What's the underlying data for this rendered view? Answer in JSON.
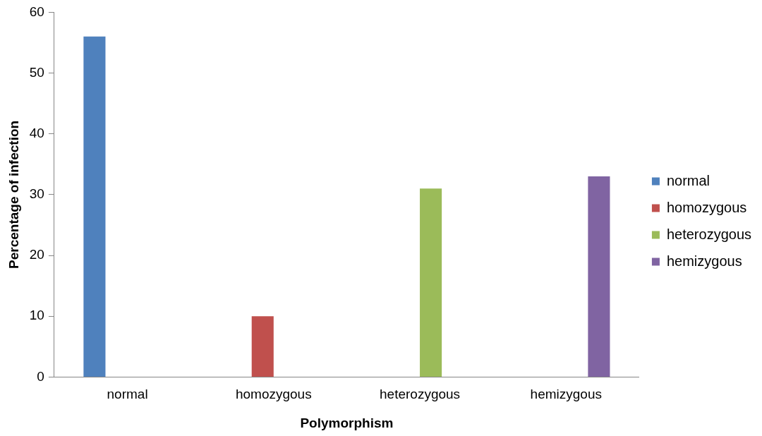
{
  "chart_data": {
    "type": "bar",
    "xlabel": "Polymorphism",
    "ylabel": "Percentage of infection",
    "categories": [
      "normal",
      "homozygous",
      "heterozygous",
      "hemizygous"
    ],
    "series": [
      {
        "name": "normal",
        "color": "#4f81bd",
        "values": [
          56,
          null,
          null,
          null
        ]
      },
      {
        "name": "homozygous",
        "color": "#c0504d",
        "values": [
          null,
          10,
          null,
          null
        ]
      },
      {
        "name": "heterozygous",
        "color": "#9bbb59",
        "values": [
          null,
          null,
          31,
          null
        ]
      },
      {
        "name": "hemizygous",
        "color": "#8064a2",
        "values": [
          null,
          null,
          null,
          33
        ]
      }
    ],
    "ylim": [
      0,
      60
    ],
    "yticks": [
      0,
      10,
      20,
      30,
      40,
      50,
      60
    ],
    "grid": false,
    "legend": "right"
  }
}
